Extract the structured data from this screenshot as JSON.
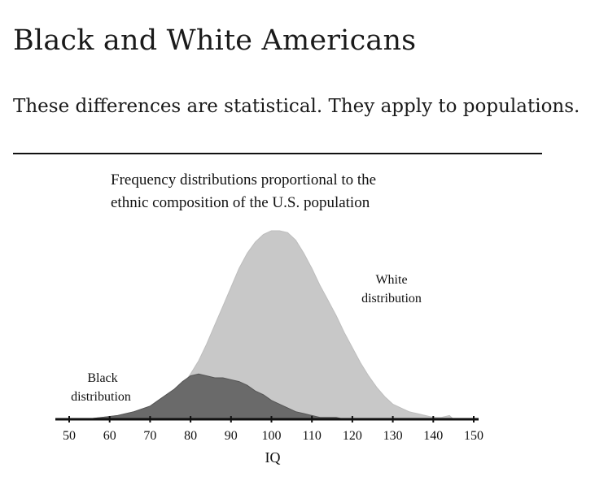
{
  "page": {
    "title": "Black and White Americans",
    "lead": "These differences are statistical. They apply to populations."
  },
  "chart_data": {
    "type": "area",
    "title_lines": [
      "Frequency distributions proportional to the",
      "ethnic composition of the U.S. population"
    ],
    "xlabel": "IQ",
    "xlim": [
      48,
      152
    ],
    "ylim": [
      0,
      100
    ],
    "x_ticks": [
      50,
      60,
      70,
      80,
      90,
      100,
      110,
      120,
      130,
      140,
      150
    ],
    "series": [
      {
        "name": "White",
        "label_lines": [
          "White",
          "distribution"
        ],
        "color": "#c8c8c8",
        "x": [
          54,
          58,
          62,
          66,
          70,
          74,
          76,
          78,
          80,
          82,
          84,
          86,
          88,
          90,
          92,
          94,
          96,
          98,
          100,
          102,
          104,
          106,
          108,
          110,
          112,
          114,
          116,
          118,
          120,
          122,
          124,
          126,
          128,
          130,
          132,
          134,
          136,
          138,
          140,
          142,
          144,
          145
        ],
        "values": [
          0,
          1,
          2,
          4,
          7,
          11,
          14,
          18,
          24,
          31,
          40,
          50,
          60,
          70,
          80,
          88,
          94,
          98,
          100,
          100,
          99,
          95,
          88,
          80,
          71,
          63,
          55,
          46,
          38,
          30,
          23,
          17,
          12,
          8,
          6,
          4,
          3,
          2,
          1,
          1,
          2,
          0
        ]
      },
      {
        "name": "Black",
        "label_lines": [
          "Black",
          "distribution"
        ],
        "color": "#6a6a6a",
        "x": [
          54,
          58,
          62,
          66,
          70,
          72,
          74,
          76,
          78,
          80,
          82,
          84,
          86,
          88,
          90,
          92,
          94,
          96,
          98,
          100,
          102,
          104,
          106,
          108,
          110,
          112,
          114,
          116,
          118,
          120,
          122,
          124
        ],
        "values": [
          0,
          1,
          2,
          4,
          7,
          10,
          13,
          16,
          20,
          23,
          24,
          23,
          22,
          22,
          21,
          20,
          18,
          15,
          13,
          10,
          8,
          6,
          4,
          3,
          2,
          1,
          1,
          1,
          0,
          0,
          0,
          0
        ]
      }
    ]
  }
}
